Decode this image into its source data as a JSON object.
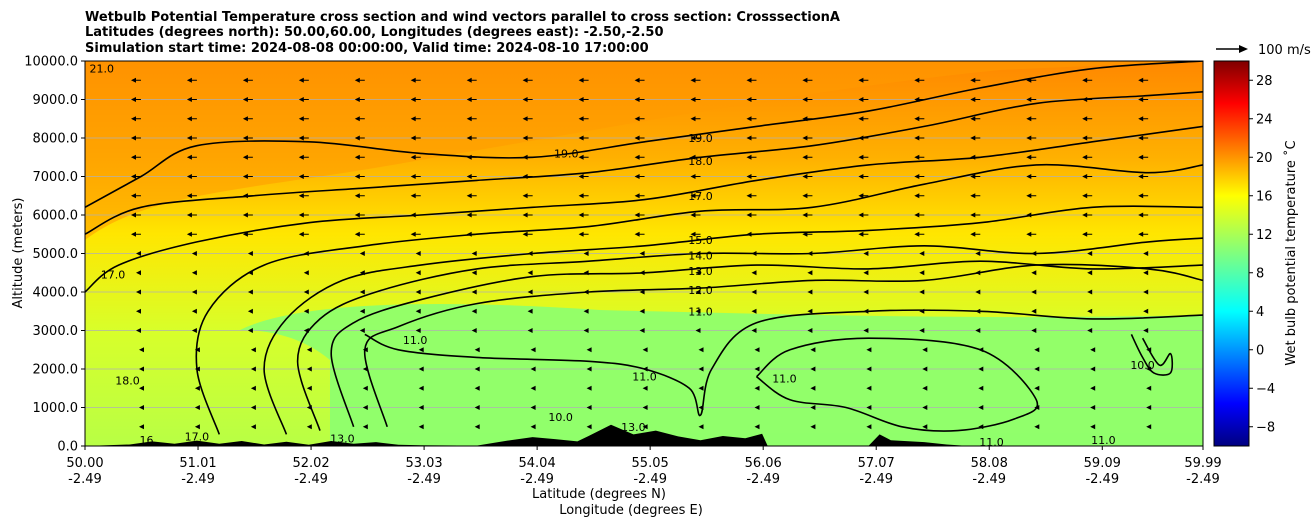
{
  "chart_data": {
    "type": "heatmap",
    "title_lines": [
      "Wetbulb Potential Temperature cross section and wind vectors parallel to cross section: CrosssectionA",
      "Latitudes (degrees north): 50.00,60.00, Longitudes (degrees east): -2.50,-2.50",
      "Simulation start time: 2024-08-08 00:00:00, Valid time: 2024-08-10 17:00:00"
    ],
    "xlabel_lines": [
      "Latitude (degrees N)",
      "Longitude (degrees E)"
    ],
    "ylabel": "Altitude (meters)",
    "x_ticks": [
      {
        "lat": "50.00",
        "lon": "-2.49",
        "value": 50.0
      },
      {
        "lat": "51.01",
        "lon": "-2.49",
        "value": 51.01
      },
      {
        "lat": "52.02",
        "lon": "-2.49",
        "value": 52.02
      },
      {
        "lat": "53.03",
        "lon": "-2.49",
        "value": 53.03
      },
      {
        "lat": "54.04",
        "lon": "-2.49",
        "value": 54.04
      },
      {
        "lat": "55.05",
        "lon": "-2.49",
        "value": 55.05
      },
      {
        "lat": "56.06",
        "lon": "-2.49",
        "value": 56.06
      },
      {
        "lat": "57.07",
        "lon": "-2.49",
        "value": 57.07
      },
      {
        "lat": "58.08",
        "lon": "-2.49",
        "value": 58.08
      },
      {
        "lat": "59.09",
        "lon": "-2.49",
        "value": 59.09
      },
      {
        "lat": "59.99",
        "lon": "-2.49",
        "value": 59.99
      }
    ],
    "xlim": [
      50.0,
      59.99
    ],
    "y_ticks": [
      "0.0",
      "1000.0",
      "2000.0",
      "3000.0",
      "4000.0",
      "5000.0",
      "6000.0",
      "7000.0",
      "8000.0",
      "9000.0",
      "10000.0"
    ],
    "ylim": [
      0,
      10000
    ],
    "grid": "horizontal",
    "colorbar": {
      "label": "Wet bulb potential temperature $^\\circ$C",
      "label_display": "Wet bulb potential temperature ˚C",
      "range": [
        -10,
        30
      ],
      "ticks": [
        "−8",
        "−4",
        "0",
        "4",
        "8",
        "12",
        "16",
        "20",
        "24",
        "28"
      ],
      "tick_values": [
        -8,
        -4,
        0,
        4,
        8,
        12,
        16,
        20,
        24,
        28
      ],
      "colormap": "jet",
      "colors": [
        "#00007f",
        "#0000ff",
        "#007fff",
        "#00ffff",
        "#7fff7f",
        "#ffff00",
        "#ff7f00",
        "#ff0000",
        "#7f0000"
      ]
    },
    "quiver_key": {
      "label": "100 m/s",
      "value": 100
    },
    "contour_levels": [
      10.0,
      11.0,
      12.0,
      13.0,
      14.0,
      15.0,
      16.0,
      17.0,
      18.0,
      19.0,
      20.0,
      21.0
    ],
    "contour_labels": [
      {
        "text": "19.0",
        "lat": 55.5,
        "alt": 8000
      },
      {
        "text": "19.0",
        "lat": 54.3,
        "alt": 7600
      },
      {
        "text": "18.0",
        "lat": 55.5,
        "alt": 7400
      },
      {
        "text": "17.0",
        "lat": 55.5,
        "alt": 6500
      },
      {
        "text": "15.0",
        "lat": 55.5,
        "alt": 5350
      },
      {
        "text": "14.0",
        "lat": 55.5,
        "alt": 4950
      },
      {
        "text": "13.0",
        "lat": 55.5,
        "alt": 4550
      },
      {
        "text": "12.0",
        "lat": 55.5,
        "alt": 4050
      },
      {
        "text": "11.0",
        "lat": 55.5,
        "alt": 3500
      },
      {
        "text": "11.0",
        "lat": 52.95,
        "alt": 2750
      },
      {
        "text": "17.0",
        "lat": 50.25,
        "alt": 4450
      },
      {
        "text": "18.0",
        "lat": 50.38,
        "alt": 1700
      },
      {
        "text": "10.0",
        "lat": 59.45,
        "alt": 2100
      },
      {
        "text": "11.0",
        "lat": 55.0,
        "alt": 1800
      },
      {
        "text": "11.0",
        "lat": 56.25,
        "alt": 1750
      },
      {
        "text": "11.0",
        "lat": 58.1,
        "alt": 100
      },
      {
        "text": "11.0",
        "lat": 59.1,
        "alt": 150
      },
      {
        "text": "10.0",
        "lat": 54.25,
        "alt": 750
      },
      {
        "text": "13.0",
        "lat": 54.9,
        "alt": 500
      },
      {
        "text": "16",
        "lat": 50.55,
        "alt": 150
      },
      {
        "text": "17.0",
        "lat": 51.0,
        "alt": 250
      },
      {
        "text": "13.0",
        "lat": 52.3,
        "alt": 200
      },
      {
        "text": "21.0",
        "lat": 50.15,
        "alt": 9800
      }
    ],
    "contour_lines": [
      {
        "level": 19.0,
        "points": [
          [
            50.0,
            6200
          ],
          [
            50.5,
            7000
          ],
          [
            51.0,
            7800
          ],
          [
            52.0,
            7900
          ],
          [
            53.0,
            7600
          ],
          [
            54.0,
            7500
          ],
          [
            55.0,
            7900
          ],
          [
            56.0,
            8300
          ],
          [
            57.0,
            8700
          ],
          [
            58.0,
            9300
          ],
          [
            59.0,
            9800
          ],
          [
            59.99,
            10000
          ]
        ]
      },
      {
        "level": 18.0,
        "points": [
          [
            50.0,
            5500
          ],
          [
            50.5,
            6200
          ],
          [
            51.5,
            6500
          ],
          [
            52.5,
            6700
          ],
          [
            53.5,
            6900
          ],
          [
            54.5,
            7100
          ],
          [
            55.5,
            7500
          ],
          [
            56.5,
            7800
          ],
          [
            57.5,
            8300
          ],
          [
            58.5,
            8900
          ],
          [
            59.5,
            9100
          ],
          [
            59.99,
            9200
          ]
        ]
      },
      {
        "level": 17.0,
        "points": [
          [
            50.0,
            4000
          ],
          [
            50.3,
            4700
          ],
          [
            51.0,
            5300
          ],
          [
            52.0,
            5800
          ],
          [
            53.0,
            6000
          ],
          [
            54.0,
            6200
          ],
          [
            55.0,
            6400
          ],
          [
            56.0,
            6900
          ],
          [
            57.0,
            7300
          ],
          [
            58.0,
            7500
          ],
          [
            59.0,
            7900
          ],
          [
            59.99,
            8300
          ]
        ]
      },
      {
        "level": 16.0,
        "points": [
          [
            51.2,
            300
          ],
          [
            51.0,
            2000
          ],
          [
            51.1,
            3500
          ],
          [
            51.6,
            4700
          ],
          [
            52.5,
            5200
          ],
          [
            53.5,
            5500
          ],
          [
            54.5,
            5700
          ],
          [
            55.5,
            6100
          ],
          [
            56.5,
            6200
          ],
          [
            57.5,
            6800
          ],
          [
            58.5,
            7300
          ],
          [
            59.5,
            7100
          ],
          [
            59.99,
            7300
          ]
        ]
      },
      {
        "level": 15.0,
        "points": [
          [
            51.8,
            300
          ],
          [
            51.6,
            2000
          ],
          [
            51.8,
            3300
          ],
          [
            52.3,
            4300
          ],
          [
            53.0,
            4700
          ],
          [
            54.0,
            5000
          ],
          [
            55.0,
            5200
          ],
          [
            56.0,
            5500
          ],
          [
            57.0,
            5600
          ],
          [
            58.0,
            5800
          ],
          [
            59.0,
            6200
          ],
          [
            59.99,
            6200
          ]
        ]
      },
      {
        "level": 14.0,
        "points": [
          [
            52.1,
            400
          ],
          [
            51.9,
            2200
          ],
          [
            52.1,
            3300
          ],
          [
            52.6,
            4000
          ],
          [
            53.5,
            4600
          ],
          [
            54.5,
            4800
          ],
          [
            55.5,
            5000
          ],
          [
            56.5,
            5000
          ],
          [
            57.5,
            5200
          ],
          [
            58.5,
            5000
          ],
          [
            59.5,
            5300
          ],
          [
            59.99,
            5400
          ]
        ]
      },
      {
        "level": 13.0,
        "points": [
          [
            52.4,
            500
          ],
          [
            52.2,
            2400
          ],
          [
            52.4,
            3200
          ],
          [
            53.0,
            3800
          ],
          [
            54.0,
            4400
          ],
          [
            55.0,
            4500
          ],
          [
            56.0,
            4700
          ],
          [
            57.0,
            4600
          ],
          [
            58.0,
            4800
          ],
          [
            59.0,
            4600
          ],
          [
            59.99,
            4700
          ]
        ]
      },
      {
        "level": 12.0,
        "points": [
          [
            52.7,
            500
          ],
          [
            52.5,
            2500
          ],
          [
            52.8,
            3100
          ],
          [
            53.5,
            3700
          ],
          [
            54.5,
            4000
          ],
          [
            55.5,
            4100
          ],
          [
            56.5,
            4300
          ],
          [
            57.5,
            4300
          ],
          [
            58.5,
            4700
          ],
          [
            59.5,
            4600
          ],
          [
            59.99,
            4300
          ]
        ]
      },
      {
        "level": 11.0,
        "points": [
          [
            52.5,
            2900
          ],
          [
            52.8,
            2500
          ],
          [
            53.5,
            2300
          ],
          [
            54.5,
            2200
          ],
          [
            55.0,
            2000
          ],
          [
            55.4,
            1500
          ],
          [
            55.5,
            800
          ],
          [
            55.6,
            2000
          ],
          [
            56.0,
            3200
          ],
          [
            57.0,
            3500
          ],
          [
            58.0,
            3500
          ],
          [
            59.0,
            3300
          ],
          [
            59.99,
            3400
          ]
        ]
      },
      {
        "level": 11.0,
        "points": [
          [
            56.0,
            1800
          ],
          [
            56.3,
            2500
          ],
          [
            57.0,
            2800
          ],
          [
            58.0,
            2500
          ],
          [
            58.5,
            1200
          ],
          [
            58.3,
            700
          ],
          [
            57.8,
            400
          ],
          [
            57.3,
            500
          ],
          [
            56.8,
            1000
          ],
          [
            56.3,
            1200
          ],
          [
            56.0,
            1800
          ]
        ]
      },
      {
        "level": 10.0,
        "points": [
          [
            59.35,
            2900
          ],
          [
            59.45,
            2300
          ],
          [
            59.55,
            1900
          ],
          [
            59.7,
            1900
          ],
          [
            59.7,
            2400
          ],
          [
            59.6,
            2100
          ],
          [
            59.45,
            2800
          ]
        ]
      }
    ],
    "terrain": [
      [
        50.0,
        0
      ],
      [
        50.4,
        40
      ],
      [
        50.6,
        120
      ],
      [
        50.8,
        60
      ],
      [
        51.0,
        140
      ],
      [
        51.2,
        60
      ],
      [
        51.4,
        130
      ],
      [
        51.6,
        40
      ],
      [
        51.8,
        110
      ],
      [
        52.0,
        30
      ],
      [
        52.2,
        130
      ],
      [
        52.4,
        60
      ],
      [
        52.6,
        100
      ],
      [
        52.8,
        30
      ],
      [
        53.0,
        20
      ],
      [
        53.5,
        10
      ],
      [
        53.8,
        150
      ],
      [
        54.0,
        230
      ],
      [
        54.2,
        180
      ],
      [
        54.4,
        120
      ],
      [
        54.5,
        260
      ],
      [
        54.7,
        550
      ],
      [
        54.9,
        300
      ],
      [
        55.1,
        400
      ],
      [
        55.3,
        250
      ],
      [
        55.5,
        150
      ],
      [
        55.7,
        260
      ],
      [
        55.9,
        200
      ],
      [
        56.05,
        320
      ],
      [
        56.1,
        0
      ],
      [
        57.0,
        0
      ],
      [
        57.1,
        300
      ],
      [
        57.2,
        150
      ],
      [
        57.5,
        100
      ],
      [
        57.7,
        40
      ],
      [
        57.9,
        0
      ],
      [
        59.99,
        0
      ]
    ],
    "wind_arrows": {
      "direction": "toward-south",
      "rows_alt": [
        500,
        1000,
        1500,
        2000,
        2500,
        3000,
        3500,
        4000,
        4500,
        5000,
        5500,
        6000,
        6500,
        7000,
        7500,
        8000,
        8500,
        9000,
        9500
      ],
      "cols_lat_step": 0.5
    }
  }
}
